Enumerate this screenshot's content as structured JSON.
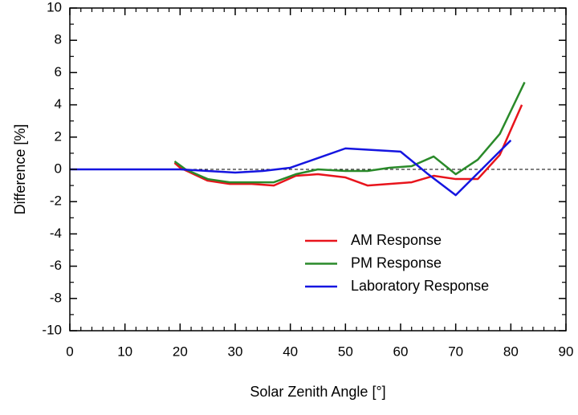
{
  "chart_data": {
    "type": "line",
    "xlabel": "Solar Zenith Angle [°]",
    "ylabel": "Difference [%]",
    "xlim": [
      0,
      90
    ],
    "xticks": [
      0,
      10,
      20,
      30,
      40,
      50,
      60,
      70,
      80,
      90
    ],
    "ylim": [
      -10,
      10
    ],
    "yticks": [
      -10,
      -8,
      -6,
      -4,
      -2,
      0,
      2,
      4,
      6,
      8,
      10
    ],
    "x_minor_divisions": 5,
    "y_minor_divisions": 2,
    "reference_line": 0,
    "legend": "lower center",
    "series": [
      {
        "name": "AM Response",
        "color": "#e8141c",
        "x": [
          19,
          20,
          25,
          29,
          33,
          37,
          41,
          45,
          50,
          54,
          58,
          62,
          66,
          70,
          74,
          78,
          82
        ],
        "values": [
          0.4,
          0.1,
          -0.7,
          -0.9,
          -0.9,
          -1.0,
          -0.4,
          -0.3,
          -0.5,
          -1.0,
          -0.9,
          -0.8,
          -0.4,
          -0.6,
          -0.6,
          0.9,
          4.0
        ]
      },
      {
        "name": "PM Response",
        "color": "#2a8a2a",
        "x": [
          19,
          21,
          25,
          29,
          33,
          37,
          41,
          45,
          50,
          54,
          58,
          62,
          66,
          70,
          74,
          78,
          82.5
        ],
        "values": [
          0.5,
          0.0,
          -0.6,
          -0.8,
          -0.8,
          -0.8,
          -0.3,
          0.0,
          -0.1,
          -0.1,
          0.1,
          0.2,
          0.8,
          -0.3,
          0.6,
          2.2,
          5.4
        ]
      },
      {
        "name": "Laboratory Response",
        "color": "#1515e0",
        "x": [
          0,
          5,
          10,
          15,
          20,
          25,
          30,
          35,
          40,
          45,
          50,
          55,
          60,
          65,
          70,
          75,
          80
        ],
        "values": [
          0,
          0,
          0,
          0,
          0,
          -0.1,
          -0.2,
          -0.1,
          0.1,
          0.7,
          1.3,
          1.2,
          1.1,
          -0.3,
          -1.6,
          0.1,
          1.8
        ]
      }
    ]
  }
}
